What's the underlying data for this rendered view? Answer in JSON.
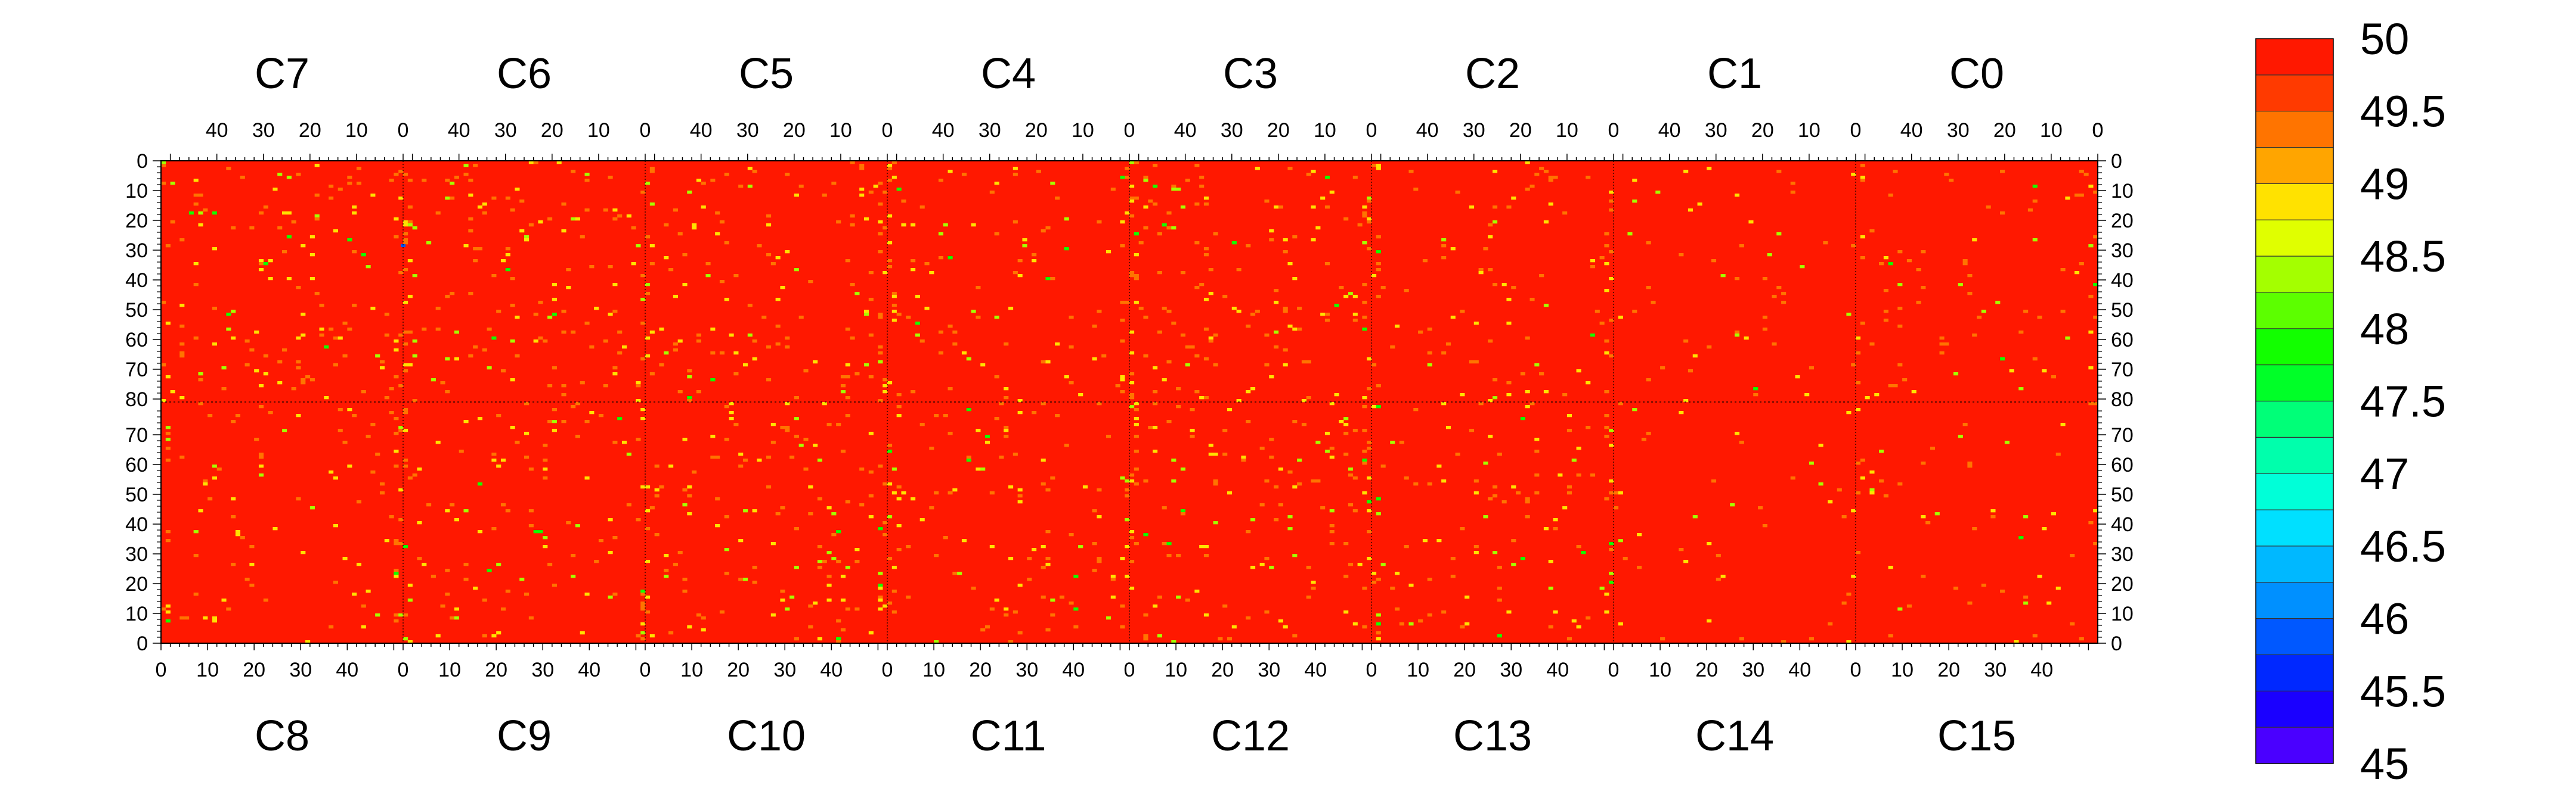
{
  "chart_data": {
    "type": "heatmap",
    "title": "",
    "xlabel": "",
    "ylabel": "",
    "top_chips": [
      "C7",
      "C6",
      "C5",
      "C4",
      "C3",
      "C2",
      "C1",
      "C0"
    ],
    "bottom_chips": [
      "C8",
      "C9",
      "C10",
      "C11",
      "C12",
      "C13",
      "C14",
      "C15"
    ],
    "top_x_ticks": [
      "40",
      "30",
      "20",
      "10",
      "0"
    ],
    "bottom_x_ticks": [
      "0",
      "10",
      "20",
      "30",
      "40"
    ],
    "y_ticks_top": [
      "0",
      "10",
      "20",
      "30",
      "40",
      "50",
      "60",
      "70",
      "80"
    ],
    "y_ticks_bottom": [
      "70",
      "60",
      "50",
      "40",
      "30",
      "20",
      "10",
      "0"
    ],
    "columns_per_chip": 52,
    "rows_per_half": 81,
    "dominant_value": 50,
    "scattered_values": [
      49.5,
      49,
      48.5,
      48
    ],
    "min_observed_value": 46,
    "colorbar": {
      "min": 45,
      "max": 50,
      "labels": [
        "50",
        "49.5",
        "49",
        "48.5",
        "48",
        "47.5",
        "47",
        "46.5",
        "46",
        "45.5",
        "45"
      ],
      "colors": [
        "#ff1800",
        "#ff3a00",
        "#ff7400",
        "#ffa500",
        "#ffe200",
        "#e0ff00",
        "#a4ff00",
        "#5cff00",
        "#12ff00",
        "#00ff28",
        "#00ff78",
        "#00ffac",
        "#00ffd8",
        "#00e0ff",
        "#00b8ff",
        "#0090ff",
        "#0058ff",
        "#0028ff",
        "#1a00ff",
        "#4a00ff"
      ]
    }
  }
}
